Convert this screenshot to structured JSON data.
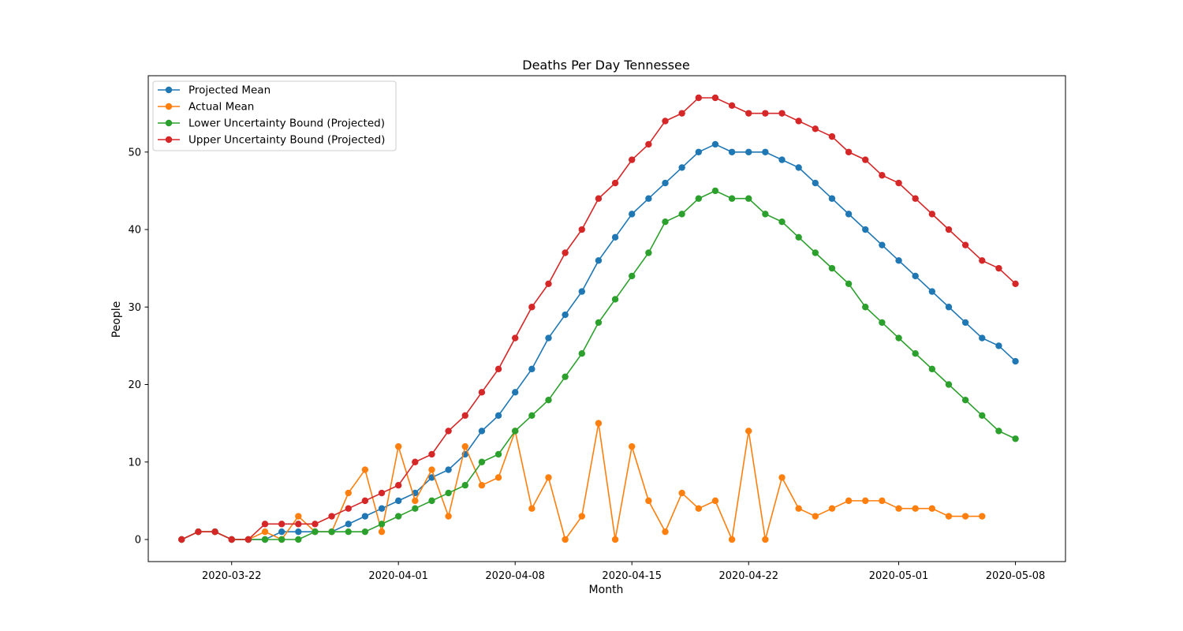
{
  "chart_data": {
    "type": "line",
    "title": "Deaths Per Day Tennessee",
    "xlabel": "Month",
    "ylabel": "People",
    "start_date": "2020-03-19",
    "xticks": [
      "2020-03-22",
      "2020-04-01",
      "2020-04-08",
      "2020-04-15",
      "2020-04-22",
      "2020-05-01",
      "2020-05-08"
    ],
    "yticks": [
      0,
      10,
      20,
      30,
      40,
      50
    ],
    "xlim": [
      "2020-03-17",
      "2020-05-11"
    ],
    "ylim": [
      -2.85,
      59.85
    ],
    "legend_position": "top-left",
    "series": [
      {
        "name": "Projected Mean",
        "color": "#1f77b4",
        "values": [
          0,
          1,
          1,
          0,
          0,
          0,
          1,
          1,
          1,
          1,
          2,
          3,
          4,
          5,
          6,
          8,
          9,
          11,
          14,
          16,
          19,
          22,
          26,
          29,
          32,
          36,
          39,
          42,
          44,
          46,
          48,
          50,
          51,
          50,
          50,
          50,
          49,
          48,
          46,
          44,
          42,
          40,
          38,
          36,
          34,
          32,
          30,
          28,
          26,
          25,
          23
        ]
      },
      {
        "name": "Actual Mean",
        "color": "#ff7f0e",
        "values": [
          0,
          1,
          1,
          0,
          0,
          1,
          0,
          3,
          1,
          1,
          6,
          9,
          1,
          12,
          5,
          9,
          3,
          12,
          7,
          8,
          14,
          4,
          8,
          0,
          3,
          15,
          0,
          12,
          5,
          1,
          6,
          4,
          5,
          0,
          14,
          0,
          8,
          4,
          3,
          4,
          5,
          5,
          5,
          4,
          4,
          4,
          3,
          3,
          3
        ]
      },
      {
        "name": "Lower Uncertainty Bound (Projected)",
        "color": "#2ca02c",
        "values": [
          0,
          1,
          1,
          0,
          0,
          0,
          0,
          0,
          1,
          1,
          1,
          1,
          2,
          3,
          4,
          5,
          6,
          7,
          10,
          11,
          14,
          16,
          18,
          21,
          24,
          28,
          31,
          34,
          37,
          41,
          42,
          44,
          45,
          44,
          44,
          42,
          41,
          39,
          37,
          35,
          33,
          30,
          28,
          26,
          24,
          22,
          20,
          18,
          16,
          14,
          13
        ]
      },
      {
        "name": "Upper Uncertainty Bound (Projected)",
        "color": "#d62728",
        "values": [
          0,
          1,
          1,
          0,
          0,
          2,
          2,
          2,
          2,
          3,
          4,
          5,
          6,
          7,
          10,
          11,
          14,
          16,
          19,
          22,
          26,
          30,
          33,
          37,
          40,
          44,
          46,
          49,
          51,
          54,
          55,
          57,
          57,
          56,
          55,
          55,
          55,
          54,
          53,
          52,
          50,
          49,
          47,
          46,
          44,
          42,
          40,
          38,
          36,
          35,
          33
        ]
      }
    ]
  }
}
